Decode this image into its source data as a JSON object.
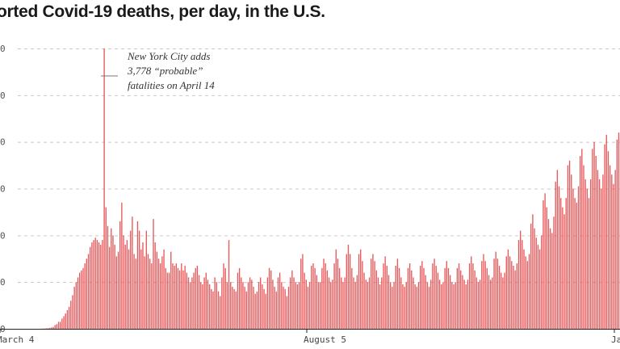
{
  "chart_data": {
    "type": "bar",
    "title": "orted Covid-19 deaths, per day, in the U.S.",
    "xlabel": "",
    "ylabel": "",
    "x_tick_labels": [
      "March 4",
      "August 5",
      "Ja"
    ],
    "y_tick_labels": [
      "0",
      "0",
      "0",
      "0",
      "0",
      "0",
      "0"
    ],
    "ylim": [
      0,
      6000
    ],
    "grid": true,
    "bar_color": "#e8585a",
    "annotation": {
      "lines": [
        "New York City adds",
        "3,778 “probable”",
        "fatalities on April 14"
      ]
    },
    "values": [
      0,
      0,
      0,
      0,
      0,
      0,
      0,
      0,
      0,
      0,
      0,
      0,
      0,
      5,
      5,
      10,
      15,
      20,
      30,
      40,
      80,
      100,
      150,
      150,
      220,
      270,
      330,
      400,
      470,
      600,
      720,
      900,
      1000,
      1100,
      1200,
      1250,
      1300,
      1400,
      1500,
      1600,
      1750,
      1850,
      1900,
      1950,
      1900,
      1850,
      1800,
      1900,
      6000,
      2600,
      2200,
      1750,
      2150,
      2000,
      1800,
      1550,
      1650,
      2300,
      2700,
      2000,
      1800,
      1900,
      1700,
      2100,
      2400,
      1600,
      1500,
      2300,
      2100,
      1700,
      1850,
      1550,
      2100,
      1600,
      1500,
      1400,
      2350,
      1850,
      1650,
      1500,
      1400,
      1550,
      1700,
      1300,
      1200,
      1200,
      1650,
      1400,
      1350,
      1400,
      1300,
      1250,
      1400,
      1250,
      1350,
      1200,
      1100,
      1000,
      1100,
      1200,
      1300,
      1350,
      1150,
      1000,
      950,
      1100,
      1200,
      1050,
      950,
      850,
      800,
      1100,
      1000,
      800,
      700,
      1100,
      1400,
      1300,
      1000,
      1900,
      1000,
      900,
      850,
      800,
      1200,
      1300,
      1100,
      1000,
      900,
      800,
      1000,
      1100,
      1050,
      900,
      750,
      800,
      1000,
      1100,
      950,
      850,
      750,
      1100,
      1300,
      1250,
      1050,
      900,
      800,
      1100,
      1200,
      1000,
      900,
      850,
      700,
      900,
      1100,
      1250,
      1100,
      1000,
      950,
      1000,
      1500,
      1600,
      1200,
      1050,
      900,
      1000,
      1350,
      1400,
      1300,
      1150,
      1000,
      1000,
      1300,
      1500,
      1400,
      1250,
      1100,
      1000,
      1050,
      1400,
      1700,
      1500,
      1300,
      1100,
      1000,
      1100,
      1600,
      1800,
      1600,
      1300,
      1100,
      1000,
      1150,
      1600,
      1700,
      1450,
      1200,
      1050,
      1000,
      1100,
      1500,
      1600,
      1450,
      1250,
      1100,
      950,
      1100,
      1400,
      1550,
      1350,
      1150,
      1000,
      900,
      1000,
      1350,
      1500,
      1300,
      1100,
      950,
      900,
      1000,
      1300,
      1400,
      1250,
      1100,
      950,
      900,
      1000,
      1350,
      1450,
      1300,
      1150,
      1000,
      900,
      1050,
      1400,
      1500,
      1350,
      1200,
      1050,
      950,
      1000,
      1300,
      1450,
      1300,
      1150,
      1000,
      950,
      1000,
      1300,
      1400,
      1250,
      1150,
      1050,
      950,
      1050,
      1400,
      1550,
      1400,
      1250,
      1100,
      1000,
      1050,
      1450,
      1600,
      1450,
      1300,
      1150,
      1050,
      1100,
      1500,
      1650,
      1500,
      1350,
      1200,
      1100,
      1200,
      1550,
      1700,
      1550,
      1450,
      1350,
      1250,
      1400,
      1900,
      2100,
      1900,
      1700,
      1550,
      1450,
      1600,
      2250,
      2450,
      2150,
      1950,
      1800,
      1700,
      2000,
      2750,
      2900,
      2600,
      2350,
      2150,
      2050,
      2400,
      3150,
      3400,
      3050,
      2800,
      2600,
      2450,
      2800,
      3500,
      3600,
      3300,
      3000,
      2800,
      2700,
      3050,
      3700,
      3850,
      3500,
      3200,
      3000,
      2800,
      3200,
      3850,
      4000,
      3700,
      3400,
      3200,
      3000,
      3300,
      3950,
      4150,
      3800,
      3500,
      3300,
      3100,
      3400,
      4050,
      4200
    ]
  }
}
